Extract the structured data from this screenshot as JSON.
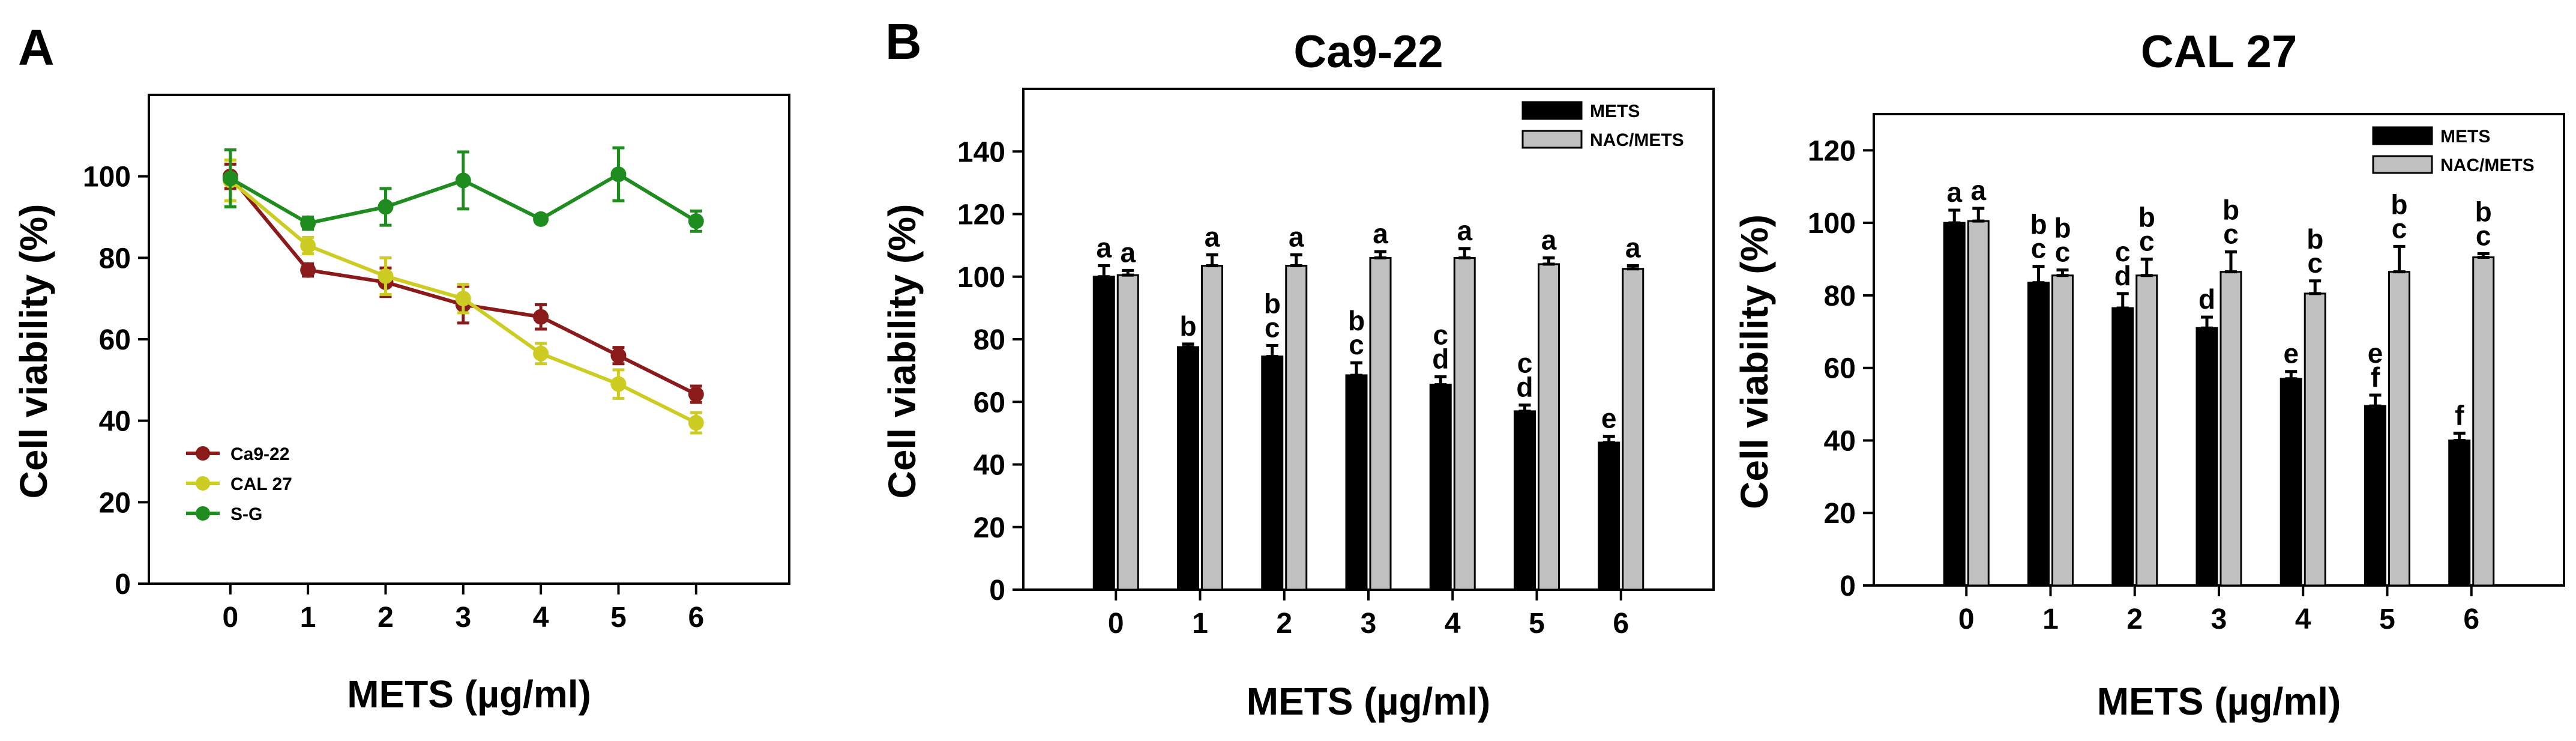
{
  "panel_labels": [
    "A",
    "B"
  ],
  "chart_data": [
    {
      "type": "line",
      "panel": "A",
      "title": "",
      "xlabel": "METS (µg/ml)",
      "ylabel": "Cell viability (%)",
      "x": [
        0,
        1,
        2,
        3,
        4,
        5,
        6
      ],
      "xlim": [
        -1.05,
        7.2
      ],
      "ylim": [
        0,
        120
      ],
      "yticks": [
        0,
        20,
        40,
        60,
        80,
        100
      ],
      "grid": false,
      "legend_position": "bottom-left",
      "series": [
        {
          "name": "Ca9-22",
          "color": "#8b1a1a",
          "values": [
            100,
            77,
            74,
            68.5,
            65.5,
            56,
            46.5
          ],
          "errors": [
            3,
            1.5,
            3.5,
            4.5,
            3,
            2,
            2
          ]
        },
        {
          "name": "CAL 27",
          "color": "#cccc22",
          "values": [
            99,
            83,
            75.5,
            70,
            56.5,
            49,
            39.5
          ],
          "errors": [
            5,
            2,
            4.5,
            3.5,
            2.5,
            3.5,
            2.5
          ]
        },
        {
          "name": "S-G",
          "color": "#1e8c1e",
          "values": [
            99.5,
            88.5,
            92.5,
            99,
            89.5,
            100.5,
            89
          ],
          "errors": [
            7,
            1.5,
            4.5,
            7,
            1,
            6.5,
            2.5
          ]
        }
      ]
    },
    {
      "type": "bar",
      "panel": "B",
      "title": "Ca9-22",
      "xlabel": "METS (µg/ml)",
      "ylabel": "Cell viability (%)",
      "categories": [
        "0",
        "1",
        "2",
        "3",
        "4",
        "5",
        "6"
      ],
      "ylim": [
        0,
        160
      ],
      "yticks": [
        0,
        20,
        40,
        60,
        80,
        100,
        120,
        140
      ],
      "grid": false,
      "legend_position": "top-right",
      "series": [
        {
          "name": "METS",
          "color": "#000000",
          "values": [
            100,
            77.5,
            74.5,
            68.5,
            65.5,
            57,
            47
          ],
          "errors": [
            3.5,
            1,
            3.5,
            4,
            2.5,
            2,
            2
          ]
        },
        {
          "name": "NAC/METS",
          "color": "#c0c0c0",
          "values": [
            100.5,
            103.5,
            103.5,
            106,
            106,
            104,
            102.5
          ],
          "errors": [
            1.5,
            3.5,
            3.5,
            2,
            3,
            2,
            1
          ]
        }
      ],
      "significance": [
        [
          [
            "a"
          ],
          [
            "a"
          ]
        ],
        [
          [
            "b"
          ],
          [
            "a"
          ]
        ],
        [
          [
            "b",
            "c"
          ],
          [
            "a"
          ]
        ],
        [
          [
            "b",
            "c"
          ],
          [
            "a"
          ]
        ],
        [
          [
            "c",
            "d"
          ],
          [
            "a"
          ]
        ],
        [
          [
            "c",
            "d"
          ],
          [
            "a"
          ]
        ],
        [
          [
            "e"
          ],
          [
            "a"
          ]
        ]
      ]
    },
    {
      "type": "bar",
      "panel": "B",
      "title": "CAL 27",
      "xlabel": "METS (µg/ml)",
      "ylabel": "Cell viability (%)",
      "categories": [
        "0",
        "1",
        "2",
        "3",
        "4",
        "5",
        "6"
      ],
      "ylim": [
        0,
        130
      ],
      "yticks": [
        0,
        20,
        40,
        60,
        80,
        100,
        120
      ],
      "grid": false,
      "legend_position": "top-right",
      "series": [
        {
          "name": "METS",
          "color": "#000000",
          "values": [
            100,
            83.5,
            76.5,
            71,
            57,
            49.5,
            40
          ],
          "errors": [
            3.5,
            4.5,
            4,
            3,
            2,
            3,
            2
          ]
        },
        {
          "name": "NAC/METS",
          "color": "#c0c0c0",
          "values": [
            100.5,
            85.5,
            85.5,
            86.5,
            80.5,
            86.5,
            90.5
          ],
          "errors": [
            3.5,
            1.5,
            4.5,
            5.5,
            3.5,
            7,
            1
          ]
        }
      ],
      "significance": [
        [
          [
            "a"
          ],
          [
            "a"
          ]
        ],
        [
          [
            "b",
            "c"
          ],
          [
            "b",
            "c"
          ]
        ],
        [
          [
            "c",
            "d"
          ],
          [
            "b",
            "c"
          ]
        ],
        [
          [
            "d"
          ],
          [
            "b",
            "c"
          ]
        ],
        [
          [
            "e"
          ],
          [
            "b",
            "c"
          ]
        ],
        [
          [
            "e",
            "f"
          ],
          [
            "b",
            "c"
          ]
        ],
        [
          [
            "f"
          ],
          [
            "b",
            "c"
          ]
        ]
      ]
    }
  ]
}
